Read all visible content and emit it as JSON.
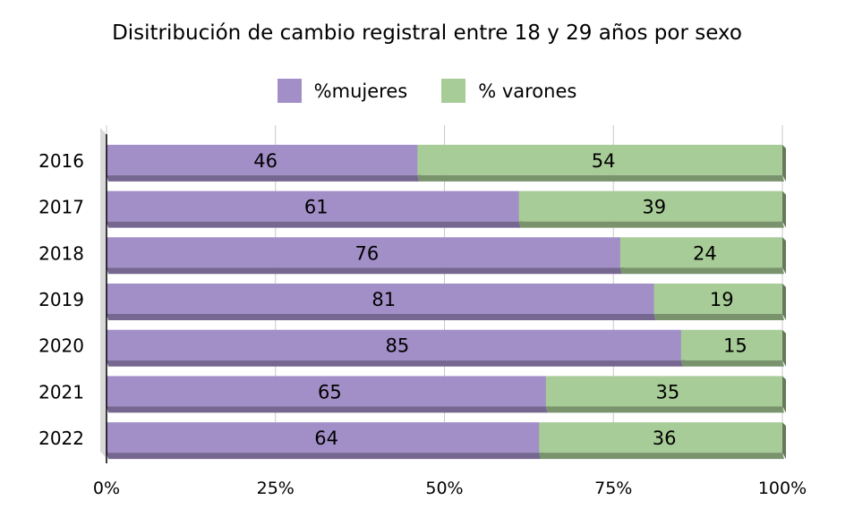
{
  "chart_data": {
    "type": "bar",
    "orientation": "horizontal",
    "stacked": true,
    "percent_stacked": true,
    "title": "Disitribución de cambio registral entre 18 y 29 años por sexo",
    "categories": [
      "2016",
      "2017",
      "2018",
      "2019",
      "2020",
      "2021",
      "2022"
    ],
    "series": [
      {
        "name": "%mujeres",
        "color": "#a28fc8",
        "values": [
          46,
          61,
          76,
          81,
          85,
          65,
          64
        ]
      },
      {
        "name": "% varones",
        "color": "#a8cc98",
        "values": [
          54,
          39,
          24,
          19,
          15,
          35,
          36
        ]
      }
    ],
    "x_ticks": [
      "0%",
      "25%",
      "50%",
      "75%",
      "100%"
    ],
    "xlim": [
      0,
      100
    ],
    "grid": true,
    "legend_position": "top"
  }
}
